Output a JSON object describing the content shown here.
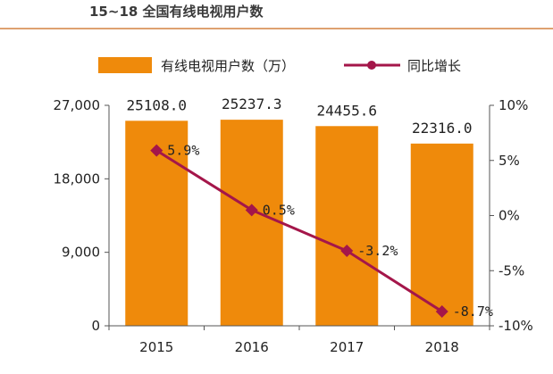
{
  "title": "15~18 全国有线电视用户数",
  "colors": {
    "bar": "#EF8A0B",
    "line": "#A4164A",
    "axis": "#555555",
    "title_rule": "#C9691A"
  },
  "chart_data": {
    "type": "bar",
    "title": "15~18 全国有线电视用户数",
    "categories": [
      "2015",
      "2016",
      "2017",
      "2018"
    ],
    "series": [
      {
        "name": "有线电视用户数（万）",
        "type": "bar",
        "axis": "left",
        "values": [
          25108.0,
          25237.3,
          24455.6,
          22316.0
        ],
        "labels": [
          "25108.0",
          "25237.3",
          "24455.6",
          "22316.0"
        ]
      },
      {
        "name": "同比增长",
        "type": "line",
        "axis": "right",
        "values": [
          5.9,
          0.5,
          -3.2,
          -8.7
        ],
        "labels": [
          "5.9%",
          "0.5%",
          "-3.2%",
          "-8.7%"
        ]
      }
    ],
    "y_left": {
      "range": [
        0,
        27000
      ],
      "ticks": [
        0,
        9000,
        18000,
        27000
      ],
      "tick_labels": [
        "0",
        "9,000",
        "18,000",
        "27,000"
      ]
    },
    "y_right": {
      "range": [
        -10,
        10
      ],
      "ticks": [
        10,
        5,
        0,
        -5,
        -10
      ],
      "tick_labels": [
        "10%",
        "5%",
        "0%",
        "-5%",
        "-10%"
      ]
    },
    "legend_position": "top",
    "grid": false
  }
}
